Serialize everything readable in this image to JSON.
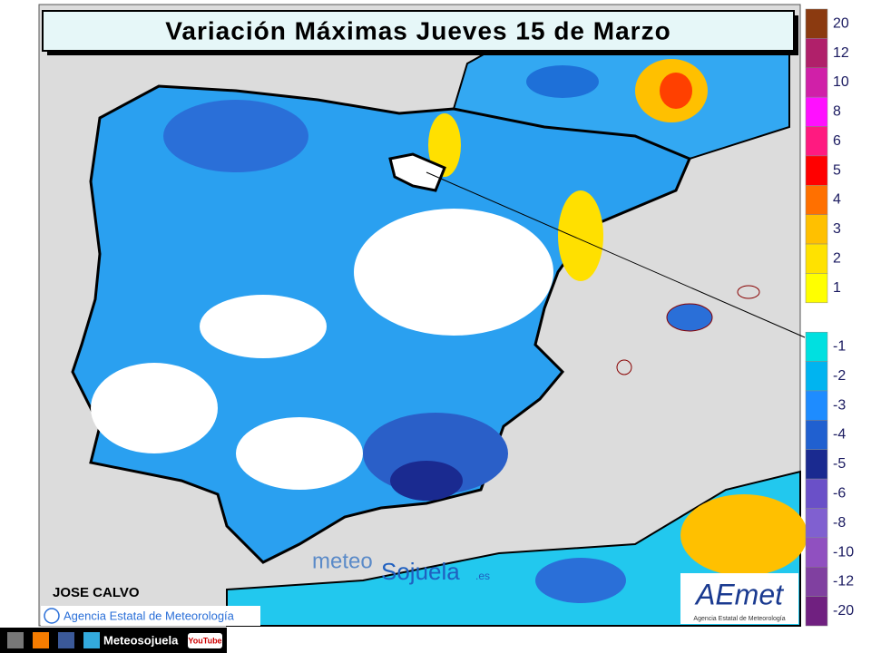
{
  "header": {
    "title": "Variación Máximas Jueves 15 de Marzo"
  },
  "legend": {
    "items": [
      {
        "label": 20,
        "color": "#8b3a10"
      },
      {
        "label": 12,
        "color": "#b0206a"
      },
      {
        "label": 10,
        "color": "#d020a8"
      },
      {
        "label": 8,
        "color": "#ff10ff"
      },
      {
        "label": 6,
        "color": "#ff1a80"
      },
      {
        "label": 5,
        "color": "#ff0000"
      },
      {
        "label": 4,
        "color": "#ff7000"
      },
      {
        "label": 3,
        "color": "#ffc000"
      },
      {
        "label": 2,
        "color": "#ffe200"
      },
      {
        "label": 1,
        "color": "#ffff00"
      },
      {
        "label": -1,
        "color": "#00e0e0"
      },
      {
        "label": -2,
        "color": "#00b4f0"
      },
      {
        "label": -3,
        "color": "#1e8cff"
      },
      {
        "label": -4,
        "color": "#2060d0"
      },
      {
        "label": -5,
        "color": "#1a2a90"
      },
      {
        "label": -6,
        "color": "#6a50c8"
      },
      {
        "label": -8,
        "color": "#8060d0"
      },
      {
        "label": -10,
        "color": "#9050c0"
      },
      {
        "label": -12,
        "color": "#8040a0"
      },
      {
        "label": -20,
        "color": "#702080"
      }
    ]
  },
  "credits": {
    "author": "JOSE CALVO",
    "copyright": "Agencia Estatal de Meteorología",
    "watermark": {
      "part1": "meteo",
      "part2": "Sojuela",
      "suffix": ".es"
    },
    "logo": {
      "name": "AEmet",
      "subtitle": "Agencia Estatal de Meteorología"
    }
  },
  "footer": {
    "site": "Meteosojuela",
    "video": "YouTube"
  }
}
